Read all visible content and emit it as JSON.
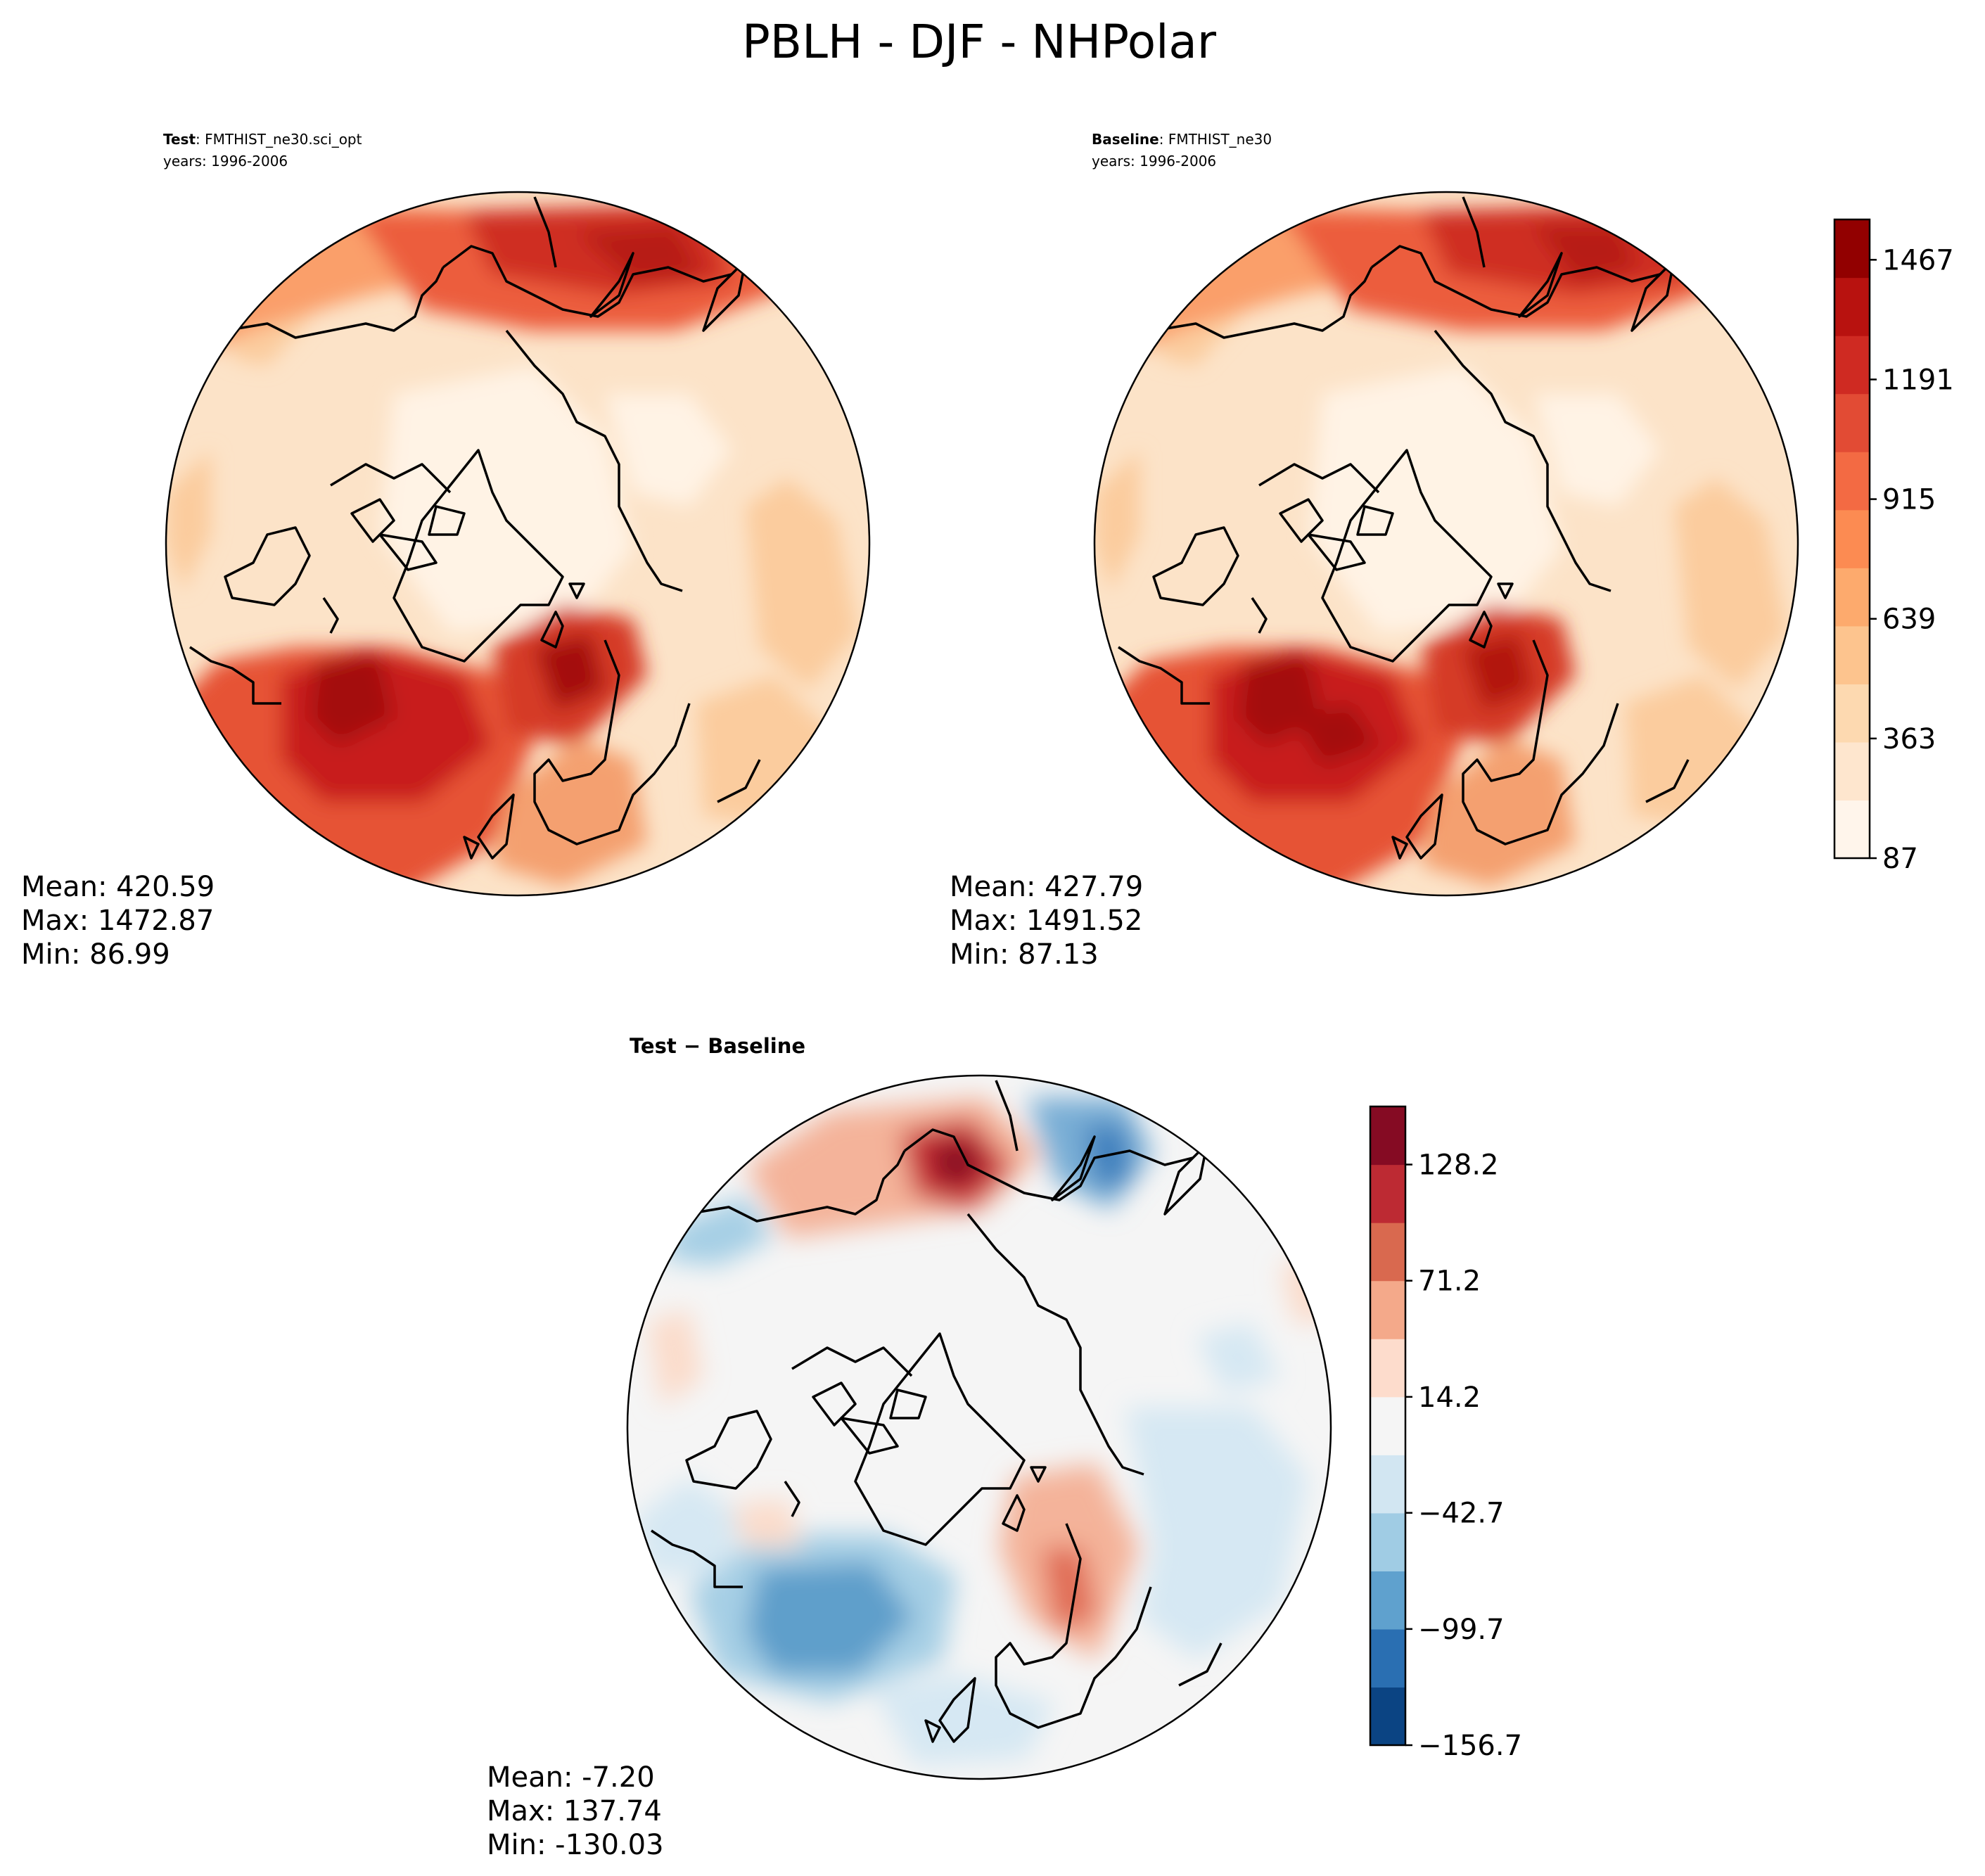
{
  "figure_title": "PBLH - DJF - NHPolar",
  "chart_data": [
    {
      "type": "heatmap",
      "projection": "north-polar-stereographic",
      "title_bold": "Test",
      "title_rest": ": FMTHIST_ne30.sci_opt",
      "subtitle": "years: 1996-2006",
      "stats": {
        "mean": "Mean: 420.59",
        "max": "Max: 1472.87",
        "min": "Min: 86.99"
      },
      "colorbar": null
    },
    {
      "type": "heatmap",
      "projection": "north-polar-stereographic",
      "title_bold": "Baseline",
      "title_rest": ": FMTHIST_ne30",
      "subtitle": "years: 1996-2006",
      "stats": {
        "mean": "Mean: 427.79",
        "max": "Max: 1491.52",
        "min": "Min: 87.13"
      },
      "colorbar": {
        "range": [
          87,
          1560
        ],
        "ticks": [
          87,
          363,
          639,
          915,
          1191,
          1467
        ],
        "tick_labels": [
          "87",
          "363",
          "639",
          "915",
          "1191",
          "1467"
        ],
        "colors": [
          "#fff5eb",
          "#fee6ce",
          "#fdd9b0",
          "#fdc48e",
          "#fdaa6d",
          "#fc8b52",
          "#f36a43",
          "#e24b34",
          "#cf2a22",
          "#b8120f",
          "#920000"
        ]
      }
    },
    {
      "type": "heatmap",
      "projection": "north-polar-stereographic",
      "title_bold": "Test",
      "title_rest": " − Baseline",
      "subtitle": "",
      "stats": {
        "mean": "Mean: -7.20",
        "max": "Max: 137.74",
        "min": "Min: -130.03"
      },
      "colorbar": {
        "range": [
          -156.7,
          156.7
        ],
        "ticks": [
          128.2,
          71.2,
          14.2,
          -42.7,
          -99.7,
          -156.7
        ],
        "tick_labels": [
          "128.2",
          "71.2",
          "14.2",
          "−42.7",
          "−99.7",
          "−156.7"
        ],
        "colors": [
          "#0b4483",
          "#2a6fb2",
          "#5fa1ce",
          "#a0cce4",
          "#d2e6f2",
          "#f5f5f5",
          "#fddccc",
          "#f4a98a",
          "#d9694f",
          "#bd2a33",
          "#850b23"
        ]
      }
    }
  ]
}
